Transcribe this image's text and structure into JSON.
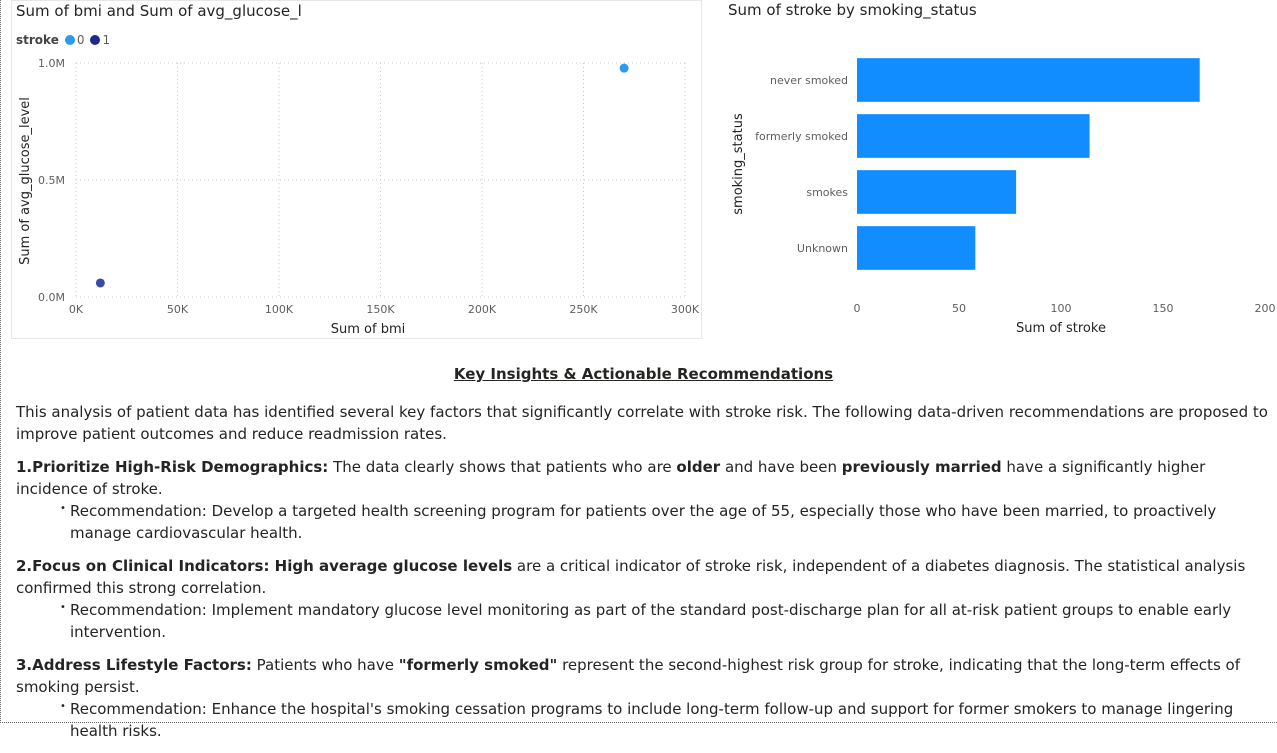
{
  "chart_data": [
    {
      "type": "scatter",
      "title": "Sum of bmi and Sum of avg_glucose_level by stroke",
      "xlabel": "Sum of bmi",
      "ylabel": "Sum of avg_glucose_level",
      "xlim": [
        0,
        300000
      ],
      "ylim": [
        0,
        1000000
      ],
      "x_ticks": [
        "0K",
        "50K",
        "100K",
        "150K",
        "200K",
        "250K",
        "300K"
      ],
      "y_ticks": [
        "0.0M",
        "0.5M",
        "1.0M"
      ],
      "grid": true,
      "legend_title": "stroke",
      "legend_position": "top-left",
      "series": [
        {
          "name": "0",
          "color": "#2b9af3",
          "points": [
            {
              "x": 270000,
              "y": 978000
            }
          ]
        },
        {
          "name": "1",
          "color": "#3a4aa6",
          "points": [
            {
              "x": 12000,
              "y": 60000
            }
          ]
        }
      ]
    },
    {
      "type": "bar",
      "orientation": "horizontal",
      "title": "Sum of stroke by smoking_status",
      "xlabel": "Sum of stroke",
      "ylabel": "smoking_status",
      "categories": [
        "never smoked",
        "formerly smoked",
        "smokes",
        "Unknown"
      ],
      "values": [
        168,
        114,
        78,
        58
      ],
      "xlim": [
        0,
        200
      ],
      "x_ticks": [
        "0",
        "50",
        "100",
        "150",
        "200"
      ],
      "color": "#118dff",
      "grid": false
    }
  ],
  "insights": {
    "heading": "Key Insights & Actionable Recommendations",
    "intro": "This analysis of patient data has identified several key factors that significantly correlate with stroke risk. The following data-driven recommendations are proposed to improve patient outcomes and reduce readmission rates.",
    "bullet": "•",
    "points": [
      {
        "title": "1.Prioritize High-Risk Demographics:",
        "t1": " The data clearly shows that patients who are ",
        "b1": "older",
        "t2": " and have been ",
        "b2": "previously married",
        "t3": " have a significantly higher incidence of stroke.",
        "rec": "Recommendation: Develop a targeted health screening program for patients over the age of 55, especially those who have been married, to proactively manage cardiovascular health."
      },
      {
        "title": "2.Focus on Clinical Indicators:",
        "b1": " High average glucose levels",
        "t1": " are a critical indicator of stroke risk, independent of a diabetes diagnosis. The statistical analysis confirmed this strong correlation.",
        "rec": "Recommendation: Implement mandatory glucose level monitoring as part of the standard post-discharge plan for all at-risk patient groups to enable early intervention."
      },
      {
        "title": "3.Address Lifestyle Factors:",
        "t1": " Patients who have ",
        "b1": "\"formerly smoked\"",
        "t2": " represent the second-highest risk group for stroke, indicating that the long-term effects of smoking persist.",
        "rec": "Recommendation: Enhance the hospital's smoking cessation programs to include long-term follow-up and support for former smokers to manage lingering health risks."
      }
    ]
  }
}
